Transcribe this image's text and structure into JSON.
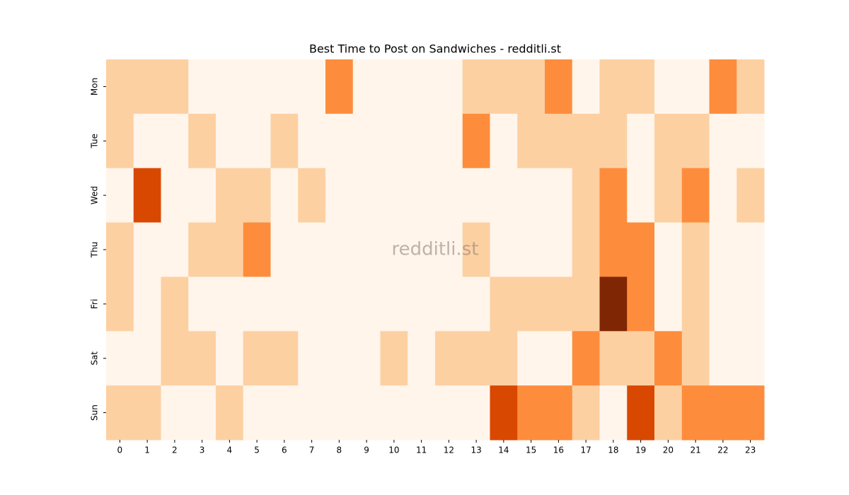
{
  "chart_data": {
    "type": "heatmap",
    "title": "Best Time to Post on Sandwiches - redditli.st",
    "watermark": "redditli.st",
    "x_categories": [
      0,
      1,
      2,
      3,
      4,
      5,
      6,
      7,
      8,
      9,
      10,
      11,
      12,
      13,
      14,
      15,
      16,
      17,
      18,
      19,
      20,
      21,
      22,
      23
    ],
    "y_categories": [
      "Mon",
      "Tue",
      "Wed",
      "Thu",
      "Fri",
      "Sat",
      "Sun"
    ],
    "values": [
      [
        1,
        1,
        1,
        0,
        0,
        0,
        0,
        0,
        2,
        0,
        0,
        0,
        0,
        1,
        1,
        1,
        2,
        0,
        1,
        1,
        0,
        0,
        2,
        1
      ],
      [
        1,
        0,
        0,
        1,
        0,
        0,
        1,
        0,
        0,
        0,
        0,
        0,
        0,
        2,
        0,
        1,
        1,
        1,
        1,
        0,
        1,
        1,
        0,
        0
      ],
      [
        0,
        3,
        0,
        0,
        1,
        1,
        0,
        1,
        0,
        0,
        0,
        0,
        0,
        0,
        0,
        0,
        0,
        1,
        2,
        0,
        1,
        2,
        0,
        1
      ],
      [
        1,
        0,
        0,
        1,
        1,
        2,
        0,
        0,
        0,
        0,
        0,
        0,
        0,
        1,
        0,
        0,
        0,
        1,
        2,
        2,
        0,
        1,
        0,
        0
      ],
      [
        1,
        0,
        1,
        0,
        0,
        0,
        0,
        0,
        0,
        0,
        0,
        0,
        0,
        0,
        1,
        1,
        1,
        1,
        4,
        2,
        0,
        1,
        0,
        0
      ],
      [
        0,
        0,
        1,
        1,
        0,
        1,
        1,
        0,
        0,
        0,
        1,
        0,
        1,
        1,
        1,
        0,
        0,
        2,
        1,
        1,
        2,
        1,
        0,
        0
      ],
      [
        1,
        1,
        0,
        0,
        1,
        0,
        0,
        0,
        0,
        0,
        0,
        0,
        0,
        0,
        3,
        2,
        2,
        1,
        0,
        3,
        1,
        2,
        2,
        2
      ]
    ],
    "vmin": 0,
    "vmax": 4,
    "colormap": [
      "#fff5eb",
      "#fdd0a2",
      "#fd8d3c",
      "#d94801",
      "#7f2704"
    ]
  }
}
